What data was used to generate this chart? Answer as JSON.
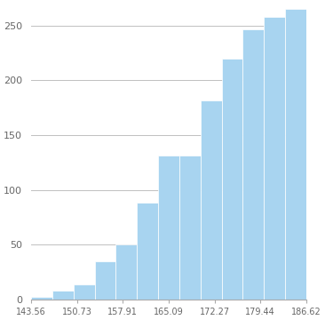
{
  "bin_start": 143.56,
  "bin_end": 186.62,
  "num_bins": 13,
  "heights": [
    2,
    8,
    14,
    35,
    50,
    88,
    131,
    131,
    182,
    220,
    247,
    258,
    265
  ],
  "bar_color": "#a8d4f0",
  "bar_edge_color": "#ffffff",
  "grid_color": "#c0c0c0",
  "yticks": [
    0,
    50,
    100,
    150,
    200,
    250
  ],
  "xticks": [
    143.56,
    150.73,
    157.91,
    165.09,
    172.27,
    179.44,
    186.62
  ],
  "ylim": [
    0,
    270
  ],
  "xlim": [
    143.56,
    186.62
  ],
  "background_color": "#ffffff"
}
